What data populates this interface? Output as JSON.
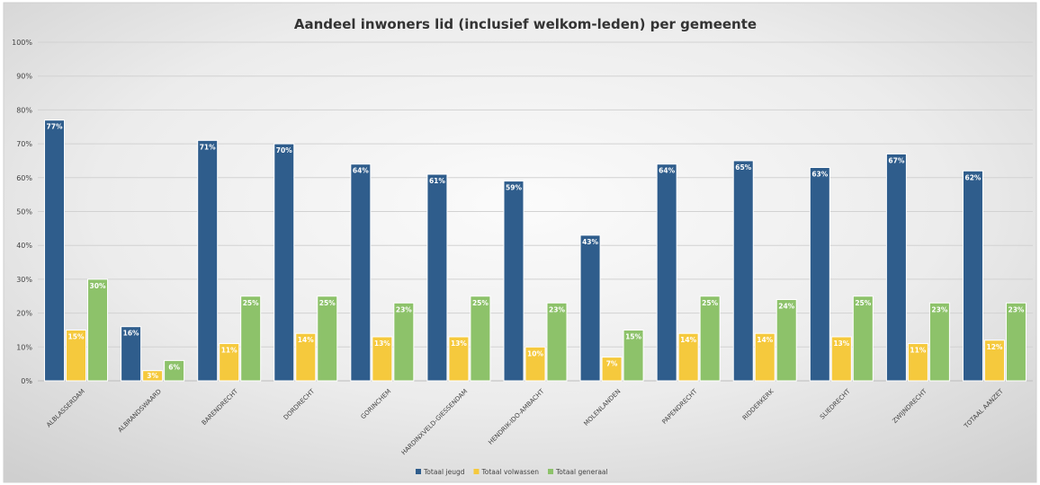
{
  "chart_data": {
    "type": "bar",
    "title": "Aandeel inwoners lid (inclusief welkom-leden) per gemeente",
    "xlabel": "",
    "ylabel": "",
    "ylim": [
      0,
      100
    ],
    "yticks": [
      "0%",
      "10%",
      "20%",
      "30%",
      "40%",
      "50%",
      "60%",
      "70%",
      "80%",
      "90%",
      "100%"
    ],
    "grid": true,
    "legend_position": "bottom",
    "categories": [
      "ALBLASSERDAM",
      "ALBRANDSWAARD",
      "BARENDRECHT",
      "DORDRECHT",
      "GORINCHEM",
      "HARDINXVELD-GIESSENDAM",
      "HENDRIK-IDO-AMBACHT",
      "MOLENLANDEN",
      "PAPENDRECHT",
      "RIDDERKERK",
      "SLIEDRECHT",
      "ZWIJNDRECHT",
      "TOTAAL AANZET"
    ],
    "series": [
      {
        "name": "Totaal jeugd",
        "color": "#2f5d8c",
        "values": [
          77,
          16,
          71,
          70,
          64,
          61,
          59,
          43,
          64,
          65,
          63,
          67,
          62
        ],
        "labels": [
          "77%",
          "16%",
          "71%",
          "70%",
          "64%",
          "61%",
          "59%",
          "43%",
          "64%",
          "65%",
          "63%",
          "67%",
          "62%"
        ]
      },
      {
        "name": "Totaal volwassen",
        "color": "#f5c93d",
        "values": [
          15,
          3,
          11,
          14,
          13,
          13,
          10,
          7,
          14,
          14,
          13,
          11,
          12
        ],
        "labels": [
          "15%",
          "3%",
          "11%",
          "14%",
          "13%",
          "13%",
          "10%",
          "7%",
          "14%",
          "14%",
          "13%",
          "11%",
          "12%"
        ]
      },
      {
        "name": "Totaal generaal",
        "color": "#8dc26a",
        "values": [
          30,
          6,
          25,
          25,
          23,
          25,
          23,
          15,
          25,
          24,
          25,
          23,
          23
        ],
        "labels": [
          "30%",
          "6%",
          "25%",
          "25%",
          "23%",
          "25%",
          "23%",
          "15%",
          "25%",
          "24%",
          "25%",
          "23%",
          "23%"
        ]
      }
    ]
  }
}
